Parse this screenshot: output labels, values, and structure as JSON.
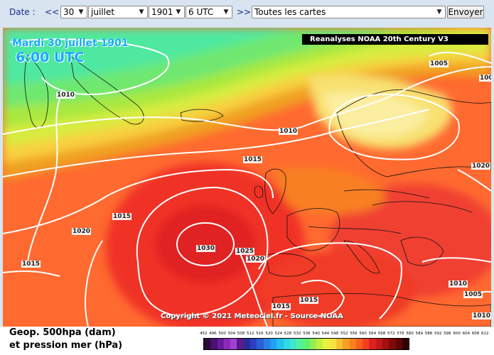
{
  "toolbar": {
    "date_label": "Date :",
    "prev_label": "<<",
    "next_label": ">>",
    "day": "30",
    "month": "juillet",
    "year": "1901",
    "hour": "6 UTC",
    "map_select": "Toutes les cartes",
    "submit_label": "Envoyer"
  },
  "map": {
    "date_stamp": "Mardi 30 juillet 1901",
    "time_stamp": "6:00 UTC",
    "banner": "Reanalyses NOAA 20th Century V3",
    "copyright": "Copyright © 2021 Meteociel.fr - Source NOAA",
    "isobar_labels": [
      "1010",
      "1005",
      "1010",
      "1015",
      "1020",
      "1015",
      "1020",
      "1030",
      "1025",
      "1020",
      "1015",
      "1015",
      "1015",
      "1010",
      "1005",
      "1010",
      "100"
    ]
  },
  "legend": {
    "title_line1": "Geop. 500hpa (dam)",
    "title_line2": "et pression mer (hPa)",
    "ticks": [
      "452",
      "496",
      "500",
      "504",
      "508",
      "512",
      "516",
      "520",
      "524",
      "528",
      "532",
      "536",
      "540",
      "544",
      "548",
      "552",
      "556",
      "560",
      "564",
      "568",
      "572",
      "576",
      "580",
      "584",
      "588",
      "592",
      "596",
      "600",
      "604",
      "608",
      "612"
    ],
    "colors": [
      "#2a0a3a",
      "#4a1070",
      "#6a1a9a",
      "#8a2ab8",
      "#a040d0",
      "#5a1a90",
      "#2a2a9a",
      "#2a40c0",
      "#2a60d8",
      "#2a80e8",
      "#20a0f0",
      "#20c0f0",
      "#30d8e8",
      "#40e8c8",
      "#50f0a0",
      "#60f070",
      "#90f050",
      "#c0f040",
      "#e8f040",
      "#f8e040",
      "#f8c030",
      "#f8a020",
      "#f88020",
      "#f86020",
      "#f04020",
      "#e02020",
      "#c01818",
      "#a01010",
      "#800808",
      "#600404",
      "#300000"
    ]
  },
  "colors": {
    "toolbar_bg": "#d8e4f0",
    "toolbar_text": "#1b2a8a",
    "stamp_blue": "#16a9ff"
  }
}
